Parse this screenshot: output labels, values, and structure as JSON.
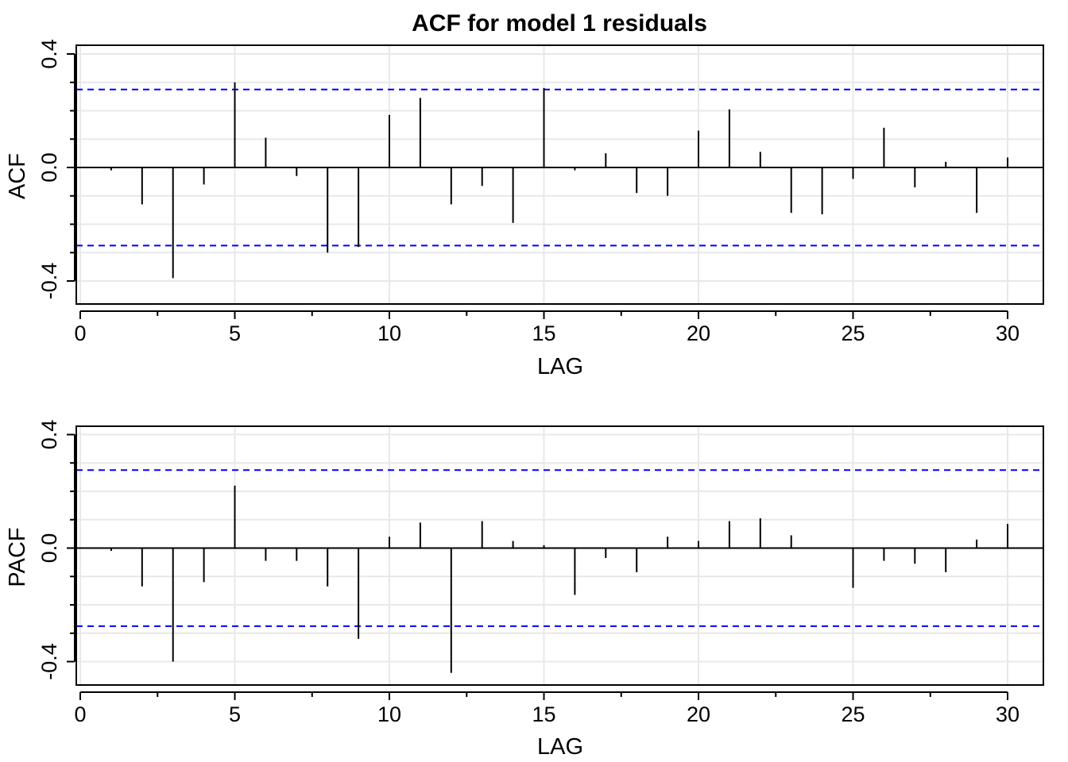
{
  "chart_data": [
    {
      "type": "bar",
      "title": "ACF for model 1 residuals",
      "xlabel": "LAG",
      "ylabel": "ACF",
      "xlim": [
        0,
        31
      ],
      "ylim": [
        -0.48,
        0.43
      ],
      "x_ticks": [
        "0",
        "5",
        "10",
        "15",
        "20",
        "25",
        "30"
      ],
      "y_ticks": [
        "-0.4",
        "0.0",
        "0.4"
      ],
      "grid": true,
      "confidence_bounds": [
        0.275,
        -0.275
      ],
      "colors": {
        "bars": "#000000",
        "bounds": "#0000ff",
        "grid": "#e8e8e8"
      },
      "x": [
        1,
        2,
        3,
        4,
        5,
        6,
        7,
        8,
        9,
        10,
        11,
        12,
        13,
        14,
        15,
        16,
        17,
        18,
        19,
        20,
        21,
        22,
        23,
        24,
        25,
        26,
        27,
        28,
        29,
        30
      ],
      "values": [
        -0.01,
        -0.13,
        -0.39,
        -0.06,
        0.3,
        0.105,
        -0.03,
        -0.3,
        -0.28,
        0.185,
        0.245,
        -0.13,
        -0.065,
        -0.195,
        0.28,
        -0.01,
        0.05,
        -0.09,
        -0.1,
        0.13,
        0.205,
        0.055,
        -0.16,
        -0.165,
        -0.04,
        0.14,
        -0.07,
        0.02,
        -0.16,
        0.035
      ]
    },
    {
      "type": "bar",
      "title": "",
      "xlabel": "LAG",
      "ylabel": "PACF",
      "xlim": [
        0,
        31
      ],
      "ylim": [
        -0.48,
        0.43
      ],
      "x_ticks": [
        "0",
        "5",
        "10",
        "15",
        "20",
        "25",
        "30"
      ],
      "y_ticks": [
        "-0.4",
        "0.0",
        "0.4"
      ],
      "grid": true,
      "confidence_bounds": [
        0.275,
        -0.275
      ],
      "colors": {
        "bars": "#000000",
        "bounds": "#0000ff",
        "grid": "#e8e8e8"
      },
      "x": [
        1,
        2,
        3,
        4,
        5,
        6,
        7,
        8,
        9,
        10,
        11,
        12,
        13,
        14,
        15,
        16,
        17,
        18,
        19,
        20,
        21,
        22,
        23,
        24,
        25,
        26,
        27,
        28,
        29,
        30
      ],
      "values": [
        -0.01,
        -0.135,
        -0.4,
        -0.12,
        0.22,
        -0.045,
        -0.045,
        -0.135,
        -0.32,
        0.04,
        0.09,
        -0.44,
        0.095,
        0.025,
        0.01,
        -0.165,
        -0.035,
        -0.085,
        0.04,
        0.025,
        0.095,
        0.105,
        0.045,
        0.0,
        -0.14,
        -0.045,
        -0.055,
        -0.085,
        0.03,
        0.085
      ]
    }
  ]
}
